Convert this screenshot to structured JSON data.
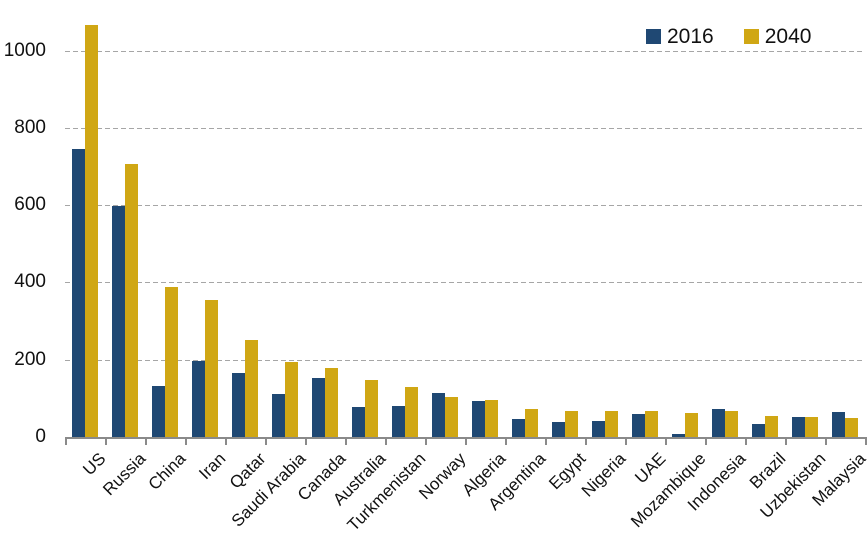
{
  "colors": {
    "series_2016": "#1f4873",
    "series_2040": "#d0a714",
    "axis": "#8a8a8a",
    "gridline": "#a6a6a6",
    "label_text": "#111111",
    "background": "#ffffff"
  },
  "legend": {
    "position": "top-right",
    "items": [
      {
        "label": "2016",
        "color": "#1f4873"
      },
      {
        "label": "2040",
        "color": "#d0a714"
      }
    ]
  },
  "chart_data": {
    "type": "bar",
    "title": "",
    "xlabel": "",
    "ylabel": "",
    "grid": "dashed horizontal",
    "legend_position": "top-right",
    "ylim": [
      0,
      1100
    ],
    "yticks": [
      0,
      200,
      400,
      600,
      800,
      1000
    ],
    "categories": [
      "US",
      "Russia",
      "China",
      "Iran",
      "Qatar",
      "Saudi Arabia",
      "Canada",
      "Australia",
      "Turkmenistan",
      "Norway",
      "Algeria",
      "Argentina",
      "Egypt",
      "Nigeria",
      "UAE",
      "Mozambique",
      "Indonesia",
      "Brazil",
      "Uzbekistan",
      "Malaysia"
    ],
    "series": [
      {
        "name": "2016",
        "color": "#1f4873",
        "values": [
          745,
          598,
          133,
          196,
          166,
          110,
          152,
          77,
          80,
          115,
          94,
          47,
          40,
          42,
          60,
          7,
          72,
          34,
          51,
          64
        ]
      },
      {
        "name": "2040",
        "color": "#d0a714",
        "values": [
          1065,
          706,
          389,
          355,
          251,
          194,
          178,
          147,
          129,
          104,
          97,
          73,
          68,
          68,
          68,
          63,
          66,
          54,
          51,
          48
        ]
      }
    ]
  }
}
